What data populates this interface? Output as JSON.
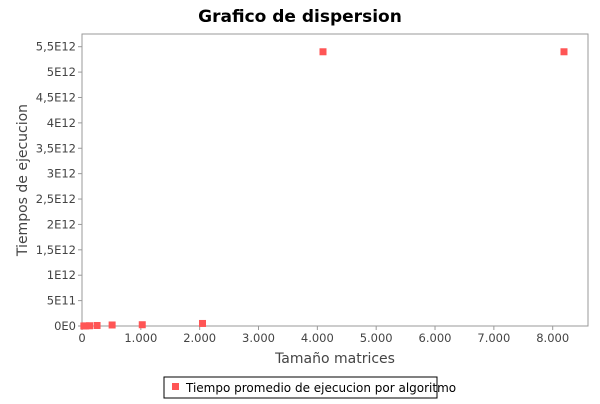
{
  "chart_data": {
    "type": "scatter",
    "title": "Grafico de dispersion",
    "xlabel": "Tamaño matrices",
    "ylabel": "Tiempos de ejecucion",
    "xlim": [
      0,
      8600
    ],
    "ylim": [
      0,
      5750000000000.0
    ],
    "x_ticks": [
      {
        "value": 0,
        "label": "0"
      },
      {
        "value": 1000,
        "label": "1.000"
      },
      {
        "value": 2000,
        "label": "2.000"
      },
      {
        "value": 3000,
        "label": "3.000"
      },
      {
        "value": 4000,
        "label": "4.000"
      },
      {
        "value": 5000,
        "label": "5.000"
      },
      {
        "value": 6000,
        "label": "6.000"
      },
      {
        "value": 7000,
        "label": "7.000"
      },
      {
        "value": 8000,
        "label": "8.000"
      }
    ],
    "y_ticks": [
      {
        "value": 0,
        "label": "0E0"
      },
      {
        "value": 500000000000.0,
        "label": "5E11"
      },
      {
        "value": 1000000000000.0,
        "label": "1E12"
      },
      {
        "value": 1500000000000.0,
        "label": "1,5E12"
      },
      {
        "value": 2000000000000.0,
        "label": "2E12"
      },
      {
        "value": 2500000000000.0,
        "label": "2,5E12"
      },
      {
        "value": 3000000000000.0,
        "label": "3E12"
      },
      {
        "value": 3500000000000.0,
        "label": "3,5E12"
      },
      {
        "value": 4000000000000.0,
        "label": "4E12"
      },
      {
        "value": 4500000000000.0,
        "label": "4,5E12"
      },
      {
        "value": 5000000000000.0,
        "label": "5E12"
      },
      {
        "value": 5500000000000.0,
        "label": "5,5E12"
      }
    ],
    "grid": false,
    "legend_position": "bottom",
    "series": [
      {
        "name": "Tiempo promedio de ejecucion por algoritmo",
        "color": "#ff5555",
        "marker": "square",
        "points": [
          {
            "x": 32,
            "y": 1000000000.0
          },
          {
            "x": 64,
            "y": 2000000000.0
          },
          {
            "x": 128,
            "y": 5000000000.0
          },
          {
            "x": 256,
            "y": 10000000000.0
          },
          {
            "x": 512,
            "y": 20000000000.0
          },
          {
            "x": 1024,
            "y": 25000000000.0
          },
          {
            "x": 2048,
            "y": 50000000000.0
          },
          {
            "x": 4096,
            "y": 5400000000000.0
          },
          {
            "x": 8192,
            "y": 5400000000000.0
          }
        ]
      }
    ]
  }
}
